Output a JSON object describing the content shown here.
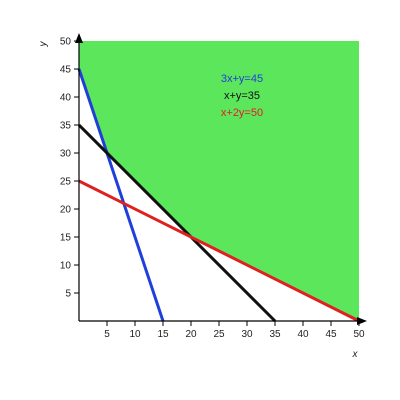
{
  "chart_data": {
    "type": "line",
    "xlabel": "x",
    "ylabel": "y",
    "xlim": [
      0,
      50
    ],
    "ylim": [
      0,
      50
    ],
    "x_ticks": [
      5,
      10,
      15,
      20,
      25,
      30,
      35,
      40,
      45,
      50
    ],
    "y_ticks": [
      5,
      10,
      15,
      20,
      25,
      30,
      35,
      40,
      45,
      50
    ],
    "grid": false,
    "legend_placement": "top-center",
    "feasible_region": {
      "color": "#5ce65c",
      "vertices": [
        [
          0,
          50
        ],
        [
          0,
          45
        ],
        [
          5,
          30
        ],
        [
          20,
          15
        ],
        [
          50,
          0
        ],
        [
          50,
          50
        ]
      ]
    },
    "series": [
      {
        "name": "3x+y=45",
        "color": "#1f3fd6",
        "points": [
          [
            0,
            45
          ],
          [
            15,
            0
          ]
        ]
      },
      {
        "name": "x+y=35",
        "color": "#111111",
        "points": [
          [
            0,
            35
          ],
          [
            35,
            0
          ]
        ]
      },
      {
        "name": "x+2y=50",
        "color": "#e02020",
        "points": [
          [
            0,
            25
          ],
          [
            50,
            0
          ]
        ]
      }
    ]
  }
}
